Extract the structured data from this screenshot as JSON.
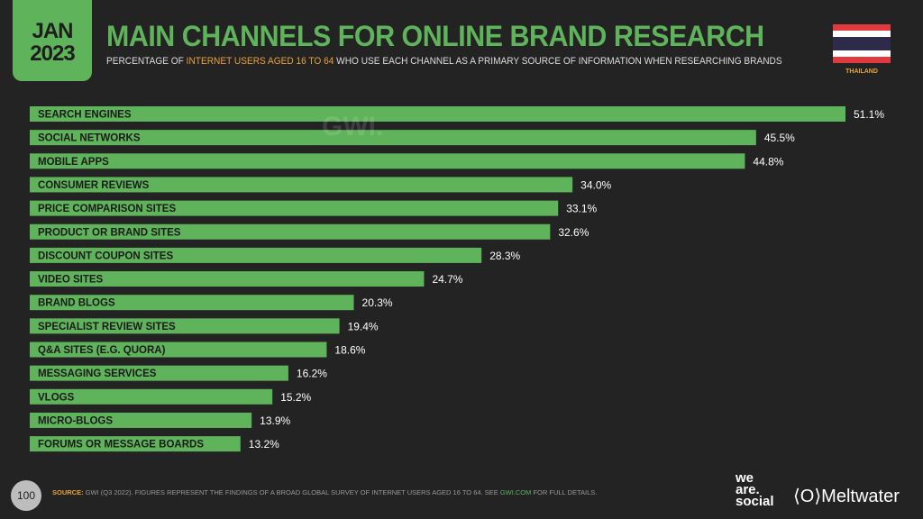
{
  "header": {
    "month": "JAN",
    "year": "2023",
    "title": "MAIN CHANNELS FOR ONLINE BRAND RESEARCH",
    "subtitle_pre": "PERCENTAGE OF ",
    "subtitle_hl": "INTERNET USERS AGED 16 TO 64",
    "subtitle_post": " WHO USE EACH CHANNEL AS A PRIMARY SOURCE OF INFORMATION WHEN RESEARCHING BRANDS",
    "country": "THAILAND"
  },
  "watermark": "GWI.",
  "footer": {
    "page": "100",
    "source_label": "SOURCE:",
    "source_text": " GWI (Q3 2022). FIGURES REPRESENT THE FINDINGS OF A BROAD GLOBAL SURVEY OF INTERNET USERS AGED 16 TO 64. SEE ",
    "source_link": "GWI.COM",
    "source_end": " FOR FULL DETAILS.",
    "brand1": "we are social",
    "brand2": "Meltwater"
  },
  "colors": {
    "bar": "#5fb35a",
    "accent": "#e8a33a",
    "background": "#232323"
  },
  "chart_data": {
    "type": "bar",
    "orientation": "horizontal",
    "title": "MAIN CHANNELS FOR ONLINE BRAND RESEARCH",
    "categories": [
      "SEARCH ENGINES",
      "SOCIAL NETWORKS",
      "MOBILE APPS",
      "CONSUMER REVIEWS",
      "PRICE COMPARISON SITES",
      "PRODUCT OR BRAND SITES",
      "DISCOUNT COUPON SITES",
      "VIDEO SITES",
      "BRAND BLOGS",
      "SPECIALIST REVIEW SITES",
      "Q&A SITES (E.G. QUORA)",
      "MESSAGING SERVICES",
      "VLOGS",
      "MICRO-BLOGS",
      "FORUMS OR MESSAGE BOARDS"
    ],
    "values": [
      51.1,
      45.5,
      44.8,
      34.0,
      33.1,
      32.6,
      28.3,
      24.7,
      20.3,
      19.4,
      18.6,
      16.2,
      15.2,
      13.9,
      13.2
    ],
    "unit": "%",
    "xlim": [
      0,
      51.1
    ]
  }
}
